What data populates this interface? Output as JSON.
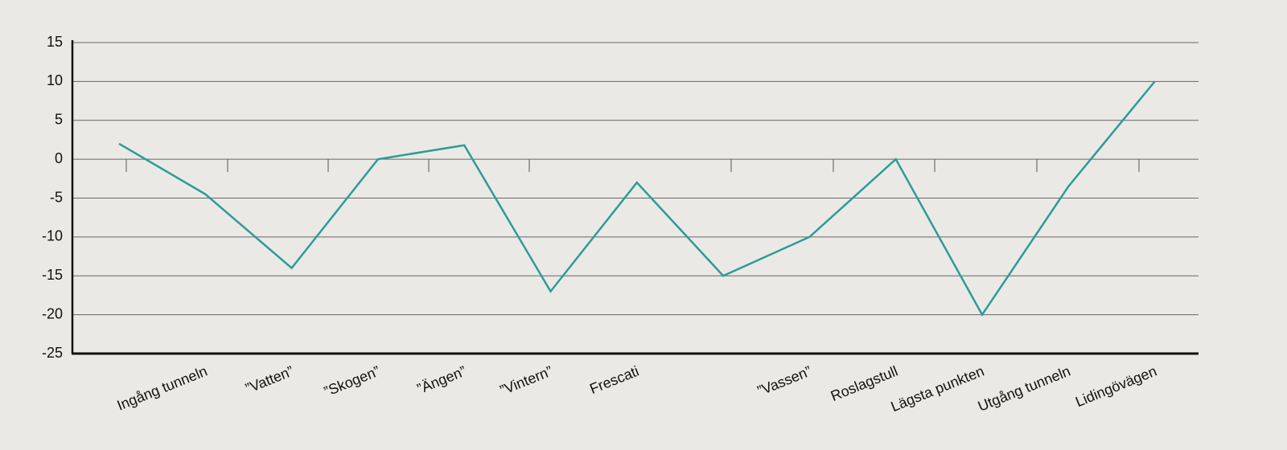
{
  "chart_data": {
    "type": "line",
    "categories": [
      null,
      "Ingång tunneln",
      "”Vatten”",
      "”Skogen”",
      "”Ängen”",
      "”Vintern”",
      "Frescati",
      null,
      "”Vassen”",
      "Roslagstull",
      "Lägsta punkten",
      "Utgång tunneln",
      "Lidingövägen"
    ],
    "series": [
      {
        "name": null,
        "color": "#2a9d96",
        "values": [
          2,
          -4.5,
          -14,
          0,
          1.8,
          -17,
          -3,
          -15,
          -10,
          0,
          -20,
          -3.5,
          10
        ]
      }
    ],
    "ylim": [
      -25,
      15
    ],
    "yticks": [
      15,
      10,
      5,
      0,
      -5,
      -10,
      -15,
      -20,
      -25
    ],
    "grid": true
  }
}
